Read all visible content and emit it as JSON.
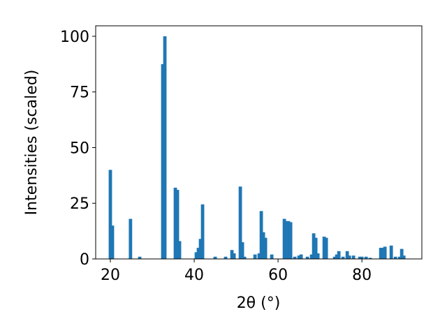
{
  "chart_data": {
    "type": "bar",
    "x_label": "2θ (°)",
    "y_label": "Intensities (scaled)",
    "x": [
      20.0,
      20.5,
      24.8,
      27.0,
      32.5,
      33.0,
      35.5,
      36.0,
      36.5,
      40.5,
      41.0,
      41.5,
      42.0,
      45.0,
      47.5,
      49.0,
      49.5,
      51.0,
      51.5,
      52.0,
      54.5,
      55.5,
      56.0,
      56.5,
      57.0,
      58.5,
      61.5,
      62.0,
      62.5,
      63.0,
      64.0,
      65.0,
      65.5,
      67.0,
      68.0,
      68.5,
      69.0,
      69.5,
      71.0,
      71.5,
      73.5,
      74.0,
      74.5,
      75.5,
      76.5,
      77.0,
      78.0,
      79.5,
      80.0,
      81.0,
      82.0,
      84.5,
      85.0,
      85.5,
      87.0,
      88.0,
      89.0,
      89.5,
      90.0
    ],
    "values": [
      40,
      15,
      18,
      1,
      87.5,
      100,
      32,
      31,
      8,
      3,
      5,
      9,
      24.5,
      1,
      1,
      4,
      2.5,
      32.5,
      7.5,
      1,
      2,
      2.5,
      21.5,
      12,
      9.5,
      2,
      18,
      17,
      17,
      16.5,
      1,
      1.5,
      2,
      1,
      2,
      11.5,
      9.5,
      2.5,
      10,
      9.5,
      1,
      2,
      3.5,
      1,
      3.5,
      1.5,
      1.5,
      1,
      1,
      1,
      0.5,
      5,
      5,
      5.5,
      6,
      1,
      1,
      4.5,
      1.5
    ],
    "color": "#1f77b4",
    "xlim": [
      16.5,
      94.3
    ],
    "xticks": [
      20,
      40,
      60,
      80
    ],
    "ylim": [
      0,
      104.7
    ],
    "yticks": [
      0,
      25,
      50,
      75,
      100
    ]
  }
}
